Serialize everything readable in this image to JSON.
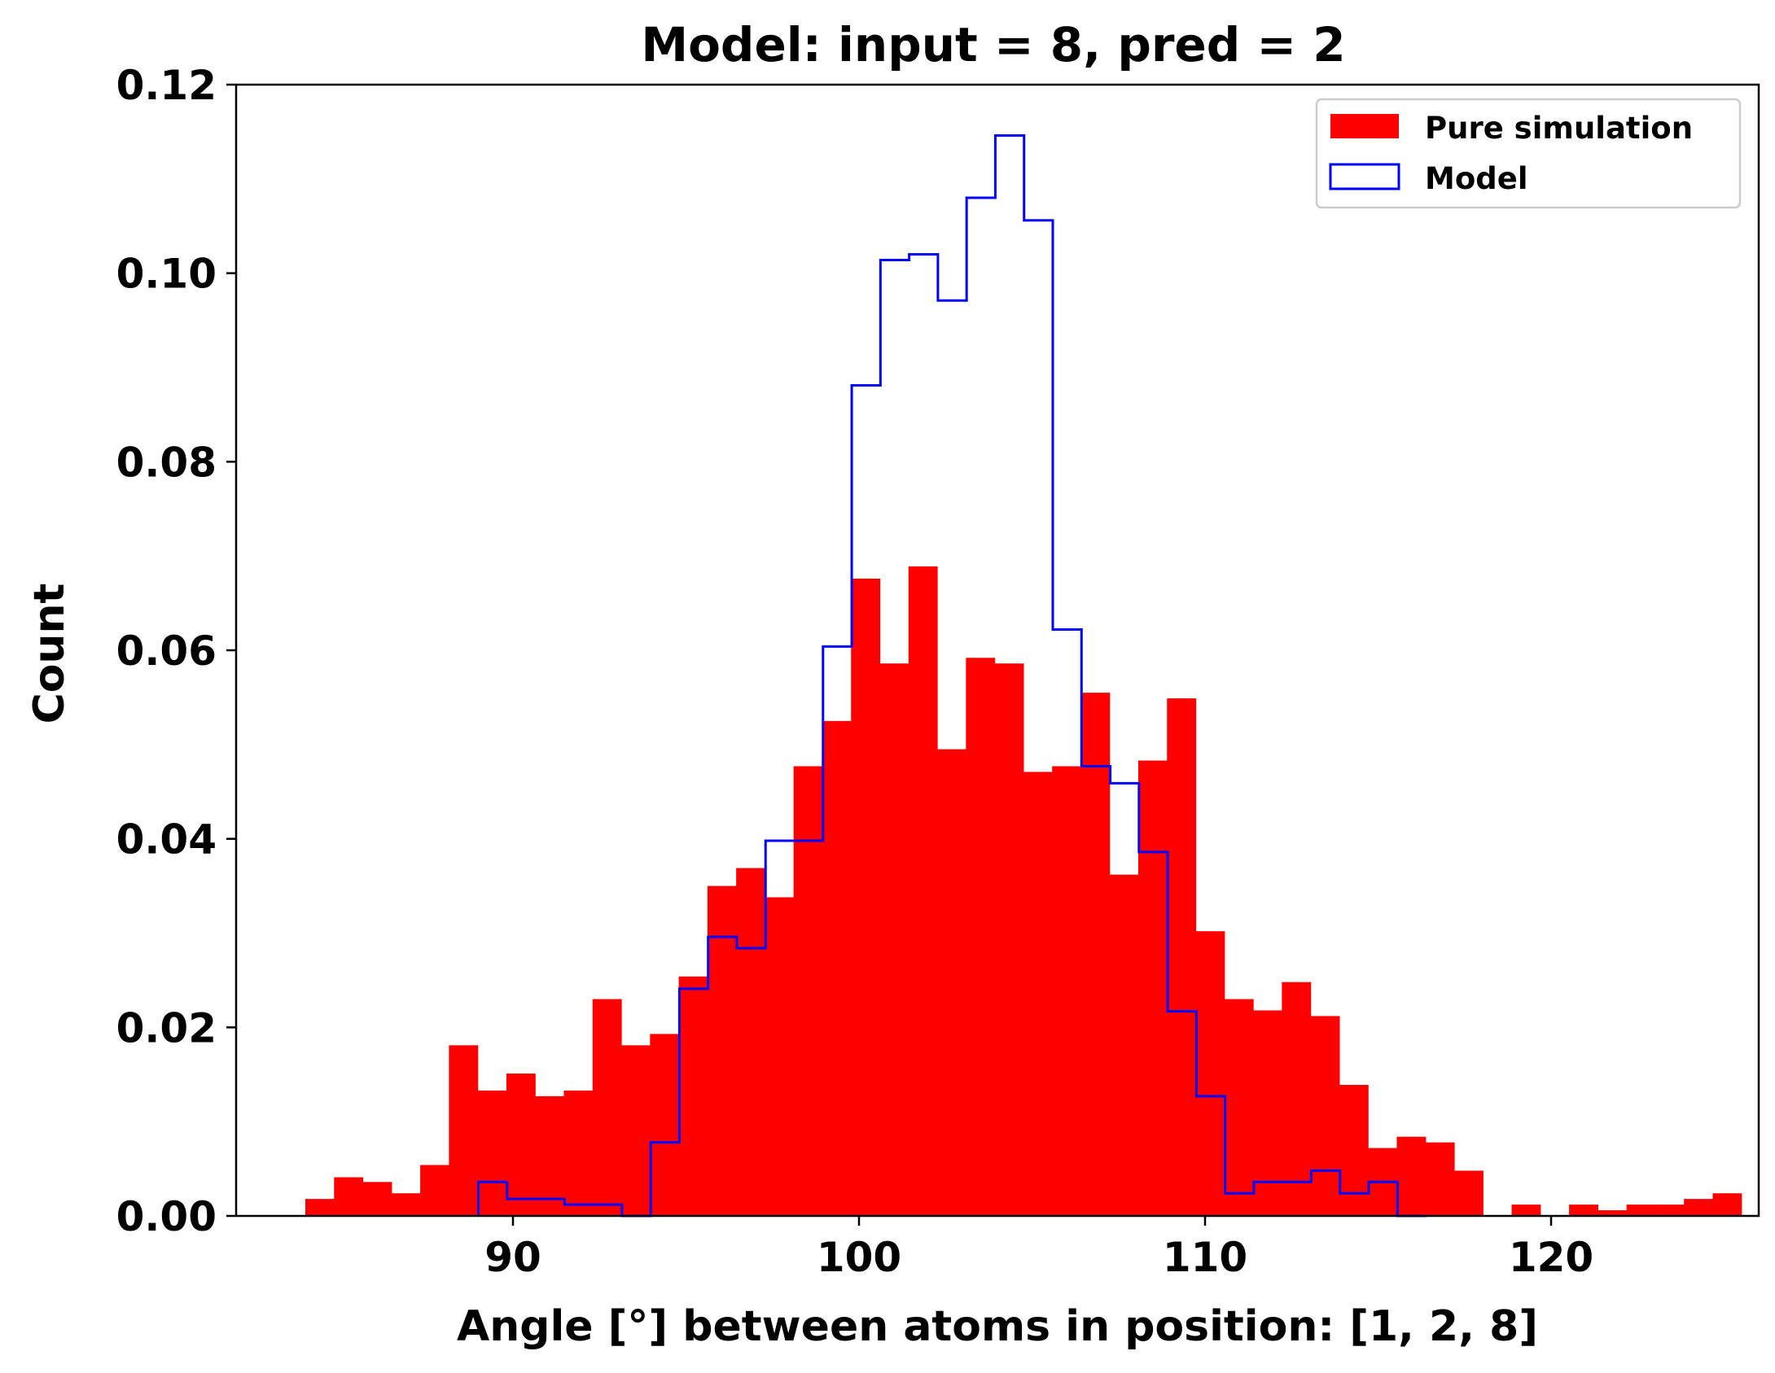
{
  "chart_data": {
    "type": "histogram",
    "title": "Model: input = 8, pred = 2",
    "xlabel": "Angle [°] between atoms in position: [1, 2, 8]",
    "ylabel": "Count",
    "xlim": [
      82,
      126
    ],
    "ylim": [
      0,
      0.12
    ],
    "xticks": [
      90,
      100,
      110,
      120
    ],
    "yticks": [
      0.0,
      0.02,
      0.04,
      0.06,
      0.08,
      0.1,
      0.12
    ],
    "xtick_labels": [
      "90",
      "100",
      "110",
      "120"
    ],
    "ytick_labels": [
      "0.00",
      "0.02",
      "0.04",
      "0.06",
      "0.08",
      "0.10",
      "0.12"
    ],
    "legend_position": "top-right",
    "grid": false,
    "series": [
      {
        "name": "Pure simulation",
        "style": "filled",
        "color": "#ff0000",
        "bin_start": 84.0,
        "bin_width": 0.83,
        "values": [
          0.0018,
          0.0041,
          0.0036,
          0.0024,
          0.0054,
          0.0181,
          0.0133,
          0.0151,
          0.0127,
          0.0133,
          0.023,
          0.0181,
          0.0193,
          0.0254,
          0.035,
          0.0369,
          0.0338,
          0.0477,
          0.0525,
          0.0676,
          0.0586,
          0.0689,
          0.0495,
          0.0592,
          0.0586,
          0.0471,
          0.0477,
          0.0555,
          0.0362,
          0.0483,
          0.0549,
          0.0302,
          0.023,
          0.0218,
          0.0248,
          0.0212,
          0.0139,
          0.0072,
          0.0084,
          0.0078,
          0.0048,
          0.0,
          0.0012,
          0.0,
          0.0012,
          0.0006,
          0.0012,
          0.0012,
          0.0018,
          0.0024
        ]
      },
      {
        "name": "Model",
        "style": "step",
        "color": "#0000ff",
        "bin_start": 89.0,
        "bin_width": 0.83,
        "values": [
          0.0036,
          0.0018,
          0.0018,
          0.0012,
          0.0012,
          0.0,
          0.0078,
          0.0241,
          0.0296,
          0.0284,
          0.0398,
          0.0398,
          0.0604,
          0.0881,
          0.1014,
          0.102,
          0.0971,
          0.108,
          0.1146,
          0.1056,
          0.0622,
          0.0477,
          0.0459,
          0.0386,
          0.0217,
          0.0127,
          0.0024,
          0.0036,
          0.0036,
          0.0048,
          0.0024,
          0.0036,
          0.0
        ]
      }
    ]
  }
}
